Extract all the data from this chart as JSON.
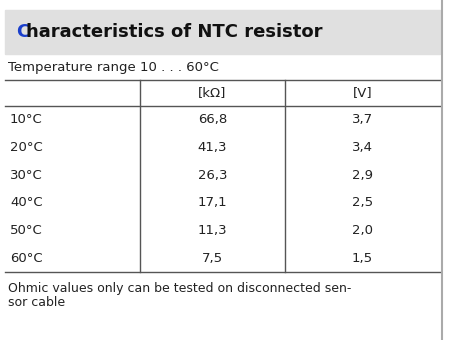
{
  "title": "Characteristics of NTC resistor",
  "title_highlight": "C",
  "subtitle": "Temperature range 10 . . . 60°C",
  "col_headers": [
    "[kΩ]",
    "[V]"
  ],
  "rows": [
    [
      "10°C",
      "66,8",
      "3,7"
    ],
    [
      "20°C",
      "41,3",
      "3,4"
    ],
    [
      "30°C",
      "26,3",
      "2,9"
    ],
    [
      "40°C",
      "17,1",
      "2,5"
    ],
    [
      "50°C",
      "11,3",
      "2,0"
    ],
    [
      "60°C",
      "7,5",
      "1,5"
    ]
  ],
  "footer_line1": "Ohmic values only can be tested on disconnected sen-",
  "footer_line2": "sor cable",
  "bg_title": "#e0e0e0",
  "bg_body": "#ffffff",
  "text_color": "#222222",
  "border_color": "#555555",
  "title_color": "#111111",
  "highlight_color": "#1a3fcc",
  "figsize": [
    4.5,
    3.4
  ],
  "dpi": 100,
  "title_fontsize": 13,
  "body_fontsize": 9.5,
  "subtitle_fontsize": 9.5,
  "footer_fontsize": 9.0
}
